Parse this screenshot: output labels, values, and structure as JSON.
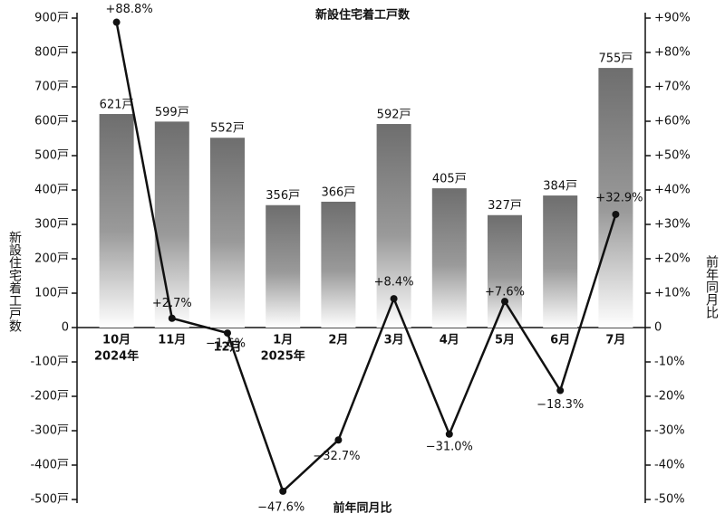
{
  "chart_data": {
    "type": "bar_line",
    "title": "新設住宅着工戸数",
    "y_label": "新設住宅着工戸数",
    "y2_label": "前年同月比",
    "x_label": "前年同月比",
    "categories": [
      "10月",
      "11月",
      "12月",
      "1月",
      "2月",
      "3月",
      "4月",
      "5月",
      "6月",
      "7月"
    ],
    "x_sublabels": [
      "2024年",
      null,
      null,
      "2025年",
      null,
      null,
      null,
      null,
      null,
      null
    ],
    "series": [
      {
        "name": "新設住宅着工戸数",
        "type": "bar",
        "color": "#7a7a7a",
        "values": [
          621,
          599,
          552,
          356,
          366,
          592,
          405,
          327,
          384,
          755
        ],
        "value_labels": [
          "621戸",
          "599戸",
          "552戸",
          "356戸",
          "366戸",
          "592戸",
          "405戸",
          "327戸",
          "384戸",
          "755戸"
        ]
      },
      {
        "name": "前年同月比",
        "type": "line",
        "axis": "y2",
        "color": "#111111",
        "values": [
          88.8,
          2.7,
          -1.6,
          -47.6,
          -32.7,
          8.4,
          -31.0,
          7.6,
          -18.3,
          32.9
        ],
        "value_labels": [
          "+88.8%",
          "+2.7%",
          "−1.6%",
          "−47.6%",
          "−32.7%",
          "+8.4%",
          "−31.0%",
          "+7.6%",
          "−18.3%",
          "+32.9%"
        ]
      }
    ],
    "ylim": [
      -500,
      900
    ],
    "yticks": [
      {
        "value": -500,
        "label": "-500戸"
      },
      {
        "value": -400,
        "label": "-400戸"
      },
      {
        "value": -300,
        "label": "-300戸"
      },
      {
        "value": -200,
        "label": "-200戸"
      },
      {
        "value": -100,
        "label": "-100戸"
      },
      0,
      {
        "value": 100,
        "label": "100戸"
      },
      {
        "value": 200,
        "label": "200戸"
      },
      {
        "value": 300,
        "label": "300戸"
      },
      {
        "value": 400,
        "label": "400戸"
      },
      {
        "value": 500,
        "label": "500戸"
      },
      {
        "value": 600,
        "label": "600戸"
      },
      {
        "value": 700,
        "label": "700戸"
      },
      {
        "value": 800,
        "label": "800戸"
      },
      {
        "value": 900,
        "label": "900戸"
      }
    ],
    "y2lim": [
      -50,
      90
    ],
    "y2ticks": [
      {
        "value": -50,
        "label": "-50%"
      },
      {
        "value": -40,
        "label": "-40%"
      },
      {
        "value": -30,
        "label": "-30%"
      },
      {
        "value": -20,
        "label": "-20%"
      },
      {
        "value": -10,
        "label": "-10%"
      },
      0,
      {
        "value": 10,
        "label": "+10%"
      },
      {
        "value": 20,
        "label": "+20%"
      },
      {
        "value": 30,
        "label": "+30%"
      },
      {
        "value": 40,
        "label": "+40%"
      },
      {
        "value": 50,
        "label": "+50%"
      },
      {
        "value": 60,
        "label": "+60%"
      },
      {
        "value": 70,
        "label": "+70%"
      },
      {
        "value": 80,
        "label": "+80%"
      },
      {
        "value": 90,
        "label": "+90%"
      }
    ]
  }
}
